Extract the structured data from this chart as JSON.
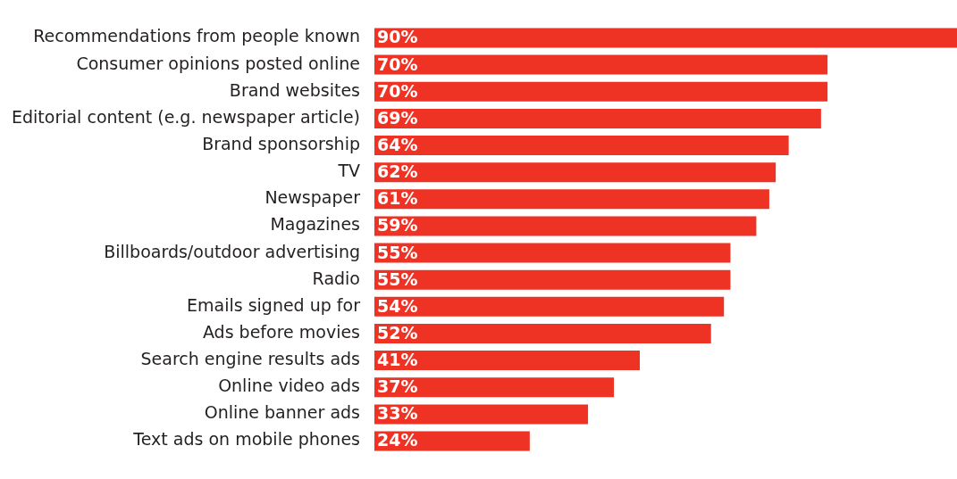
{
  "chart_data": {
    "type": "bar",
    "orientation": "horizontal",
    "categories": [
      "Recommendations from people known",
      "Consumer opinions posted online",
      "Brand websites",
      "Editorial content (e.g. newspaper article)",
      "Brand sponsorship",
      "TV",
      "Newspaper",
      "Magazines",
      "Billboards/outdoor advertising",
      "Radio",
      "Emails signed up for",
      "Ads before movies",
      "Search engine results ads",
      "Online video ads",
      "Online banner ads",
      "Text ads on mobile phones"
    ],
    "values": [
      90,
      70,
      70,
      69,
      64,
      62,
      61,
      59,
      55,
      55,
      54,
      52,
      41,
      37,
      33,
      24
    ],
    "value_labels": [
      "90%",
      "70%",
      "70%",
      "69%",
      "64%",
      "62%",
      "61%",
      "59%",
      "55%",
      "55%",
      "54%",
      "52%",
      "41%",
      "37%",
      "33%",
      "24%"
    ],
    "color": "#ee3224",
    "xlim": [
      0,
      90
    ],
    "grid": false,
    "legend": false
  }
}
